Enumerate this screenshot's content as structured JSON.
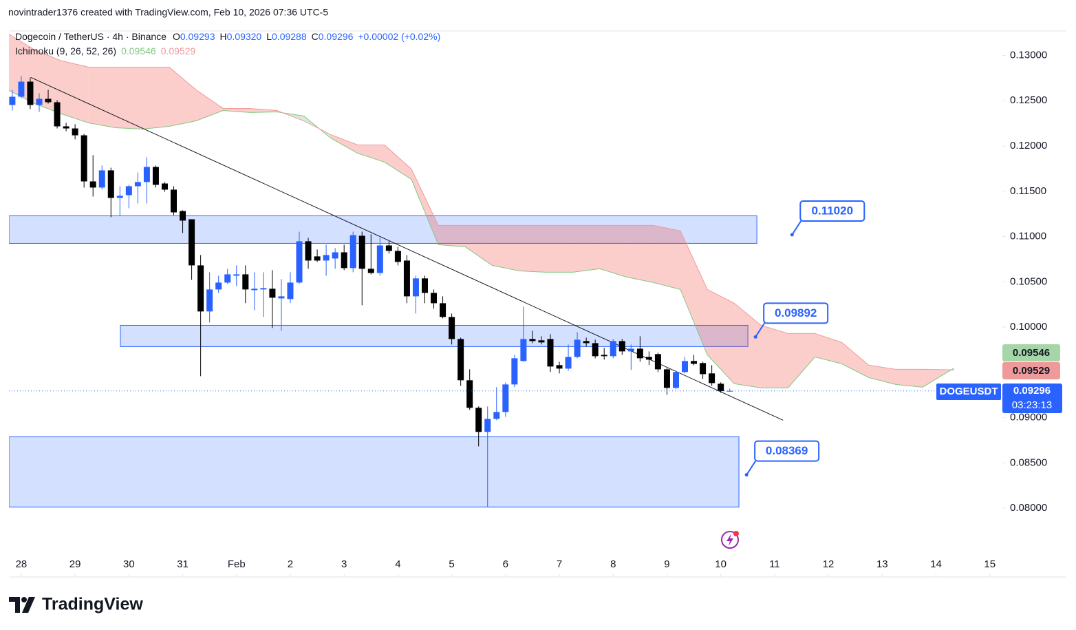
{
  "header": {
    "credit": "novintrader1376 created with TradingView.com, Feb 10, 2026 07:36 UTC-5",
    "symbol": "Dogecoin / TetherUS · 4h · Binance",
    "ohlc": [
      {
        "key": "O",
        "label": "0.09293"
      },
      {
        "key": "H",
        "label": "0.09320"
      },
      {
        "key": "L",
        "label": "0.09288"
      },
      {
        "key": "C",
        "label": "0.09296"
      }
    ],
    "change": "+0.00002 (+0.02%)",
    "indicator": "Ichimoku (9, 26, 52, 26)",
    "ticker": "DOGEUSDT",
    "countdown": "03:23:13"
  },
  "brand": "TradingView",
  "chart_data": {
    "type": "candlestick",
    "up_color": "#2962ff",
    "down_color": "#000000",
    "grid": false,
    "xlim": [
      -5.5,
      437
    ],
    "ylim": [
      0.0753,
      0.1327
    ],
    "xticks": [
      {
        "value": 0,
        "label": "28"
      },
      {
        "value": 24,
        "label": "29"
      },
      {
        "value": 48,
        "label": "30"
      },
      {
        "value": 72,
        "label": "31"
      },
      {
        "value": 96,
        "label": "Feb"
      },
      {
        "value": 120,
        "label": "2"
      },
      {
        "value": 144,
        "label": "3"
      },
      {
        "value": 168,
        "label": "4"
      },
      {
        "value": 192,
        "label": "5"
      },
      {
        "value": 216,
        "label": "6"
      },
      {
        "value": 240,
        "label": "7"
      },
      {
        "value": 264,
        "label": "8"
      },
      {
        "value": 288,
        "label": "9"
      },
      {
        "value": 312,
        "label": "10"
      },
      {
        "value": 336,
        "label": "11"
      },
      {
        "value": 360,
        "label": "12"
      },
      {
        "value": 384,
        "label": "13"
      },
      {
        "value": 408,
        "label": "14"
      },
      {
        "value": 432,
        "label": "15"
      }
    ],
    "yticks": [
      {
        "value": 0.08,
        "label": "0.08000"
      },
      {
        "value": 0.085,
        "label": "0.08500"
      },
      {
        "value": 0.09,
        "label": "0.09000"
      },
      {
        "value": 0.095,
        "label": "0.09500"
      },
      {
        "value": 0.1,
        "label": "0.10000"
      },
      {
        "value": 0.105,
        "label": "0.10500"
      },
      {
        "value": 0.11,
        "label": "0.11000"
      },
      {
        "value": 0.115,
        "label": "0.11500"
      },
      {
        "value": 0.12,
        "label": "0.12000"
      },
      {
        "value": 0.125,
        "label": "0.12500"
      },
      {
        "value": 0.13,
        "label": "0.13000"
      }
    ],
    "candles": {
      "x": [
        -4,
        0,
        4,
        8,
        12,
        16,
        20,
        24,
        28,
        32,
        36,
        40,
        44,
        48,
        52,
        56,
        60,
        64,
        68,
        72,
        76,
        80,
        84,
        88,
        92,
        96,
        100,
        104,
        108,
        112,
        116,
        120,
        124,
        128,
        132,
        136,
        140,
        144,
        148,
        152,
        156,
        160,
        164,
        168,
        172,
        176,
        180,
        184,
        188,
        192,
        196,
        200,
        204,
        208,
        212,
        216,
        220,
        224,
        228,
        232,
        236,
        240,
        244,
        248,
        252,
        256,
        260,
        264,
        268,
        272,
        276,
        280,
        284,
        288,
        292,
        296,
        300,
        304,
        308,
        312,
        316
      ],
      "open": [
        0.12453,
        0.12544,
        0.12711,
        0.12453,
        0.12521,
        0.12483,
        0.12217,
        0.12194,
        0.12118,
        0.11609,
        0.11541,
        0.11731,
        0.11427,
        0.11457,
        0.11556,
        0.11602,
        0.11769,
        0.11586,
        0.11518,
        0.11282,
        0.11191,
        0.10682,
        0.10173,
        0.10416,
        0.10492,
        0.10568,
        0.10583,
        0.10408,
        0.10416,
        0.10424,
        0.10317,
        0.1031,
        0.10492,
        0.10948,
        0.10781,
        0.10735,
        0.10758,
        0.10826,
        0.10652,
        0.11009,
        0.10644,
        0.10598,
        0.10902,
        0.10842,
        0.10735,
        0.1034,
        0.10538,
        0.10378,
        0.10264,
        0.10112,
        0.09869,
        0.09413,
        0.09109,
        0.08843,
        0.08987,
        0.09063,
        0.09367,
        0.09626,
        0.09869,
        0.09854,
        0.09869,
        0.0958,
        0.09542,
        0.09671,
        0.09846,
        0.09823,
        0.09694,
        0.09679,
        0.09846,
        0.09732,
        0.09762,
        0.09671,
        0.09702,
        0.09534,
        0.09329,
        0.09504,
        0.09626,
        0.09603,
        0.09489,
        0.09375,
        0.09293
      ],
      "high": [
        0.1262,
        0.12772,
        0.12757,
        0.12582,
        0.1262,
        0.12506,
        0.12255,
        0.1224,
        0.12134,
        0.11898,
        0.11784,
        0.11761,
        0.11556,
        0.11571,
        0.11708,
        0.11875,
        0.11784,
        0.11602,
        0.11556,
        0.1129,
        0.11191,
        0.10796,
        0.10606,
        0.10568,
        0.10644,
        0.10682,
        0.10682,
        0.10606,
        0.10606,
        0.10629,
        0.1053,
        0.10606,
        0.11054,
        0.10986,
        0.10857,
        0.1091,
        0.10872,
        0.1091,
        0.11054,
        0.11054,
        0.11024,
        0.10986,
        0.10948,
        0.10887,
        0.10796,
        0.10568,
        0.10568,
        0.10416,
        0.1034,
        0.1015,
        0.09884,
        0.09534,
        0.09124,
        0.09124,
        0.09337,
        0.0939,
        0.09694,
        0.10226,
        0.0996,
        0.09899,
        0.09922,
        0.09618,
        0.09808,
        0.09945,
        0.09884,
        0.09861,
        0.0977,
        0.09869,
        0.09869,
        0.09808,
        0.09899,
        0.09732,
        0.09717,
        0.0955,
        0.09519,
        0.09671,
        0.09694,
        0.09618,
        0.0958,
        0.0939,
        0.0932
      ],
      "low": [
        0.12392,
        0.12529,
        0.12407,
        0.12377,
        0.12468,
        0.12194,
        0.12164,
        0.12073,
        0.11541,
        0.11442,
        0.11518,
        0.11214,
        0.11229,
        0.11313,
        0.11366,
        0.11366,
        0.11541,
        0.11495,
        0.11237,
        0.11039,
        0.10522,
        0.09458,
        0.10051,
        0.10378,
        0.10477,
        0.10454,
        0.10264,
        0.10188,
        0.10112,
        0.0999,
        0.0996,
        0.10264,
        0.10477,
        0.10644,
        0.1072,
        0.10568,
        0.10644,
        0.10629,
        0.10606,
        0.10241,
        0.10583,
        0.10568,
        0.10811,
        0.10682,
        0.10264,
        0.1015,
        0.10264,
        0.10203,
        0.10097,
        0.09808,
        0.09352,
        0.09086,
        0.08683,
        0.08014,
        0.08972,
        0.0901,
        0.09337,
        0.09618,
        0.09823,
        0.09808,
        0.09504,
        0.09489,
        0.09519,
        0.09656,
        0.09785,
        0.09656,
        0.09641,
        0.09656,
        0.09694,
        0.09527,
        0.09618,
        0.0958,
        0.09504,
        0.09253,
        0.09314,
        0.09489,
        0.0958,
        0.09428,
        0.09352,
        0.09276,
        0.09288
      ],
      "close": [
        0.12544,
        0.12711,
        0.12453,
        0.12521,
        0.12483,
        0.12217,
        0.12194,
        0.12118,
        0.11609,
        0.11541,
        0.11731,
        0.11427,
        0.1145,
        0.11556,
        0.11602,
        0.11769,
        0.11571,
        0.11518,
        0.11267,
        0.11176,
        0.10682,
        0.10173,
        0.10416,
        0.10492,
        0.10583,
        0.10583,
        0.10416,
        0.10424,
        0.10431,
        0.10325,
        0.1034,
        0.10492,
        0.10948,
        0.10735,
        0.10735,
        0.10796,
        0.10826,
        0.10652,
        0.11016,
        0.10644,
        0.10598,
        0.10902,
        0.10842,
        0.1072,
        0.1034,
        0.10538,
        0.10378,
        0.10264,
        0.10112,
        0.09869,
        0.09413,
        0.09109,
        0.08843,
        0.08987,
        0.09063,
        0.09367,
        0.09656,
        0.09869,
        0.09846,
        0.09831,
        0.09565,
        0.09542,
        0.09671,
        0.09861,
        0.09823,
        0.09679,
        0.09679,
        0.09846,
        0.09732,
        0.09762,
        0.09656,
        0.09641,
        0.09534,
        0.09329,
        0.09504,
        0.09626,
        0.09595,
        0.09481,
        0.09382,
        0.09293,
        0.09296
      ]
    },
    "ichimoku": {
      "span_a_color": "#81c784",
      "span_b_color": "#ef9a9a",
      "x": [
        -6,
        6,
        18,
        30,
        42,
        54,
        66,
        78,
        90,
        102,
        114,
        126,
        138,
        150,
        162,
        174,
        186,
        198,
        210,
        222,
        234,
        246,
        258,
        270,
        282,
        294,
        306,
        318,
        330,
        342,
        354,
        366,
        378,
        390,
        402,
        416
      ],
      "span_a": [
        0.1262,
        0.12468,
        0.12354,
        0.12255,
        0.12202,
        0.12187,
        0.12217,
        0.12278,
        0.12392,
        0.1237,
        0.12377,
        0.12331,
        0.12088,
        0.1192,
        0.11822,
        0.11632,
        0.1091,
        0.10887,
        0.10682,
        0.10621,
        0.10606,
        0.10606,
        0.10644,
        0.10553,
        0.10492,
        0.10416,
        0.09694,
        0.09375,
        0.09329,
        0.09329,
        0.09671,
        0.09595,
        0.09443,
        0.09367,
        0.09337,
        0.09546
      ],
      "span_b": [
        0.13243,
        0.13061,
        0.1294,
        0.12871,
        0.12871,
        0.12871,
        0.12871,
        0.1262,
        0.12415,
        0.12415,
        0.12392,
        0.12278,
        0.12126,
        0.12012,
        0.12012,
        0.11746,
        0.11123,
        0.11123,
        0.11123,
        0.11123,
        0.11123,
        0.11123,
        0.11123,
        0.11123,
        0.11123,
        0.11062,
        0.10416,
        0.10264,
        0.1002,
        0.0993,
        0.0993,
        0.09831,
        0.0958,
        0.09534,
        0.09534,
        0.09529
      ]
    },
    "zones": [
      {
        "x": [
          -5.5,
          328.1
        ],
        "y": [
          0.11229,
          0.10925
        ]
      },
      {
        "x": [
          44.2,
          324.1
        ],
        "y": [
          0.1002,
          0.09785
        ]
      },
      {
        "x": [
          -5.5,
          320.1
        ],
        "y": [
          0.0879,
          0.08014
        ]
      }
    ],
    "trendline": {
      "x": [
        4.3,
        339.8
      ],
      "y": [
        0.12757,
        0.08972
      ]
    },
    "annotations": [
      {
        "label": "0.11020",
        "x": 343.8,
        "y": 0.1102
      },
      {
        "label": "0.09892",
        "x": 327.5,
        "y": 0.09892
      },
      {
        "label": "0.08369",
        "x": 323.5,
        "y": 0.08369
      }
    ]
  }
}
